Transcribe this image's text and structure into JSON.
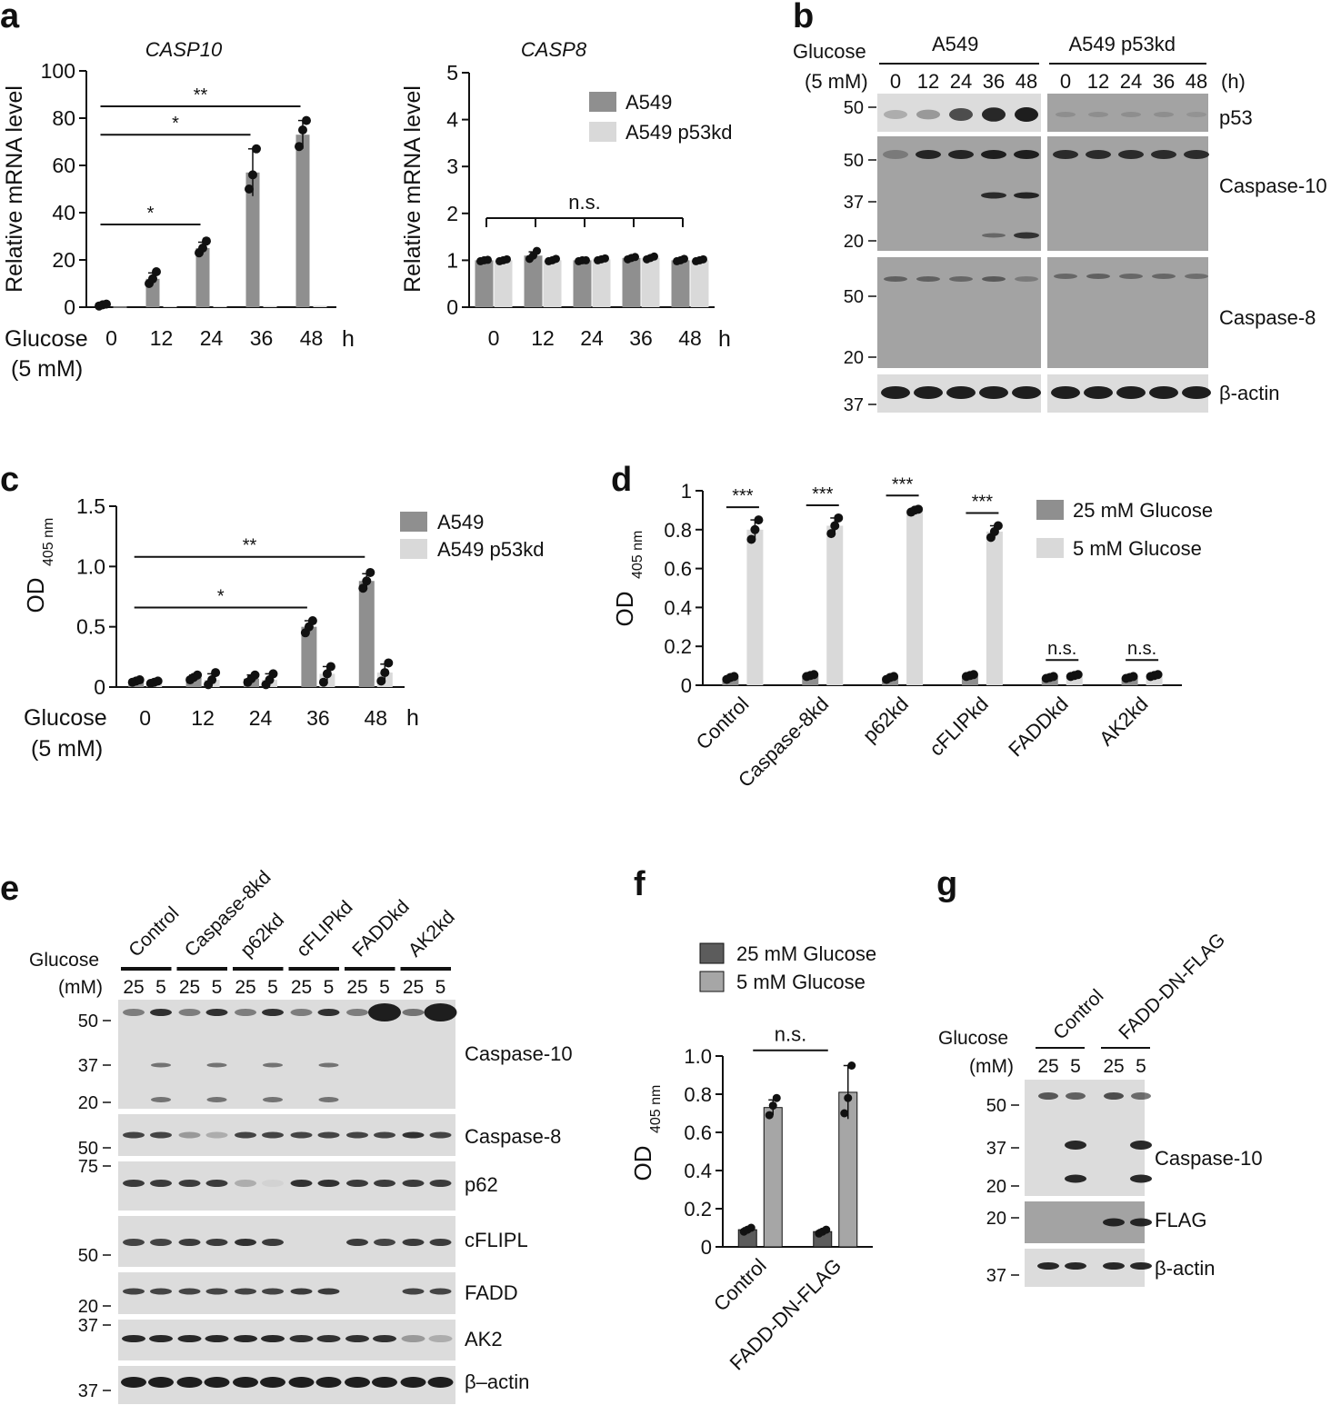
{
  "colors": {
    "dark_bar": "#8f8f8f",
    "light_bar": "#d9d9d9",
    "f_dark_bar": "#5c5c5c",
    "f_light_bar": "#a6a6a6",
    "dot": "#111111",
    "blot_bg": "#dcdcdc",
    "blot_dark_bg": "#a3a3a3",
    "band": "#1e1e1e"
  },
  "panels": {
    "a": "a",
    "b": "b",
    "c": "c",
    "d": "d",
    "e": "e",
    "f": "f",
    "g": "g"
  },
  "chart_data": [
    {
      "id": "a1",
      "type": "bar",
      "title": "CASP10",
      "ylabel": "Relative mRNA level",
      "ylim": [
        0,
        100
      ],
      "yticks": [
        "0",
        "20",
        "40",
        "60",
        "80",
        "100"
      ],
      "xlabel_main": "Glucose",
      "xlabel_sub": "(5 mM)",
      "unit": "h",
      "categories": [
        "0",
        "12",
        "24",
        "36",
        "48"
      ],
      "series": [
        {
          "values": [
            1,
            12,
            25,
            57,
            73
          ],
          "points": [
            [
              0.5,
              1,
              1.3
            ],
            [
              10,
              12,
              15
            ],
            [
              23,
              25,
              28
            ],
            [
              50,
              56,
              67
            ],
            [
              68,
              75,
              79
            ]
          ],
          "errors": [
            0.5,
            2.5,
            2.5,
            10,
            6
          ]
        },
        {
          "values": [
            0.2,
            0.4,
            0.4,
            0.5,
            0.6
          ],
          "points": [],
          "errors": []
        }
      ],
      "annotations": [
        {
          "text": "*",
          "from": 0,
          "to": 2,
          "y": 35
        },
        {
          "text": "*",
          "from": 0,
          "to": 3,
          "y": 73
        },
        {
          "text": "**",
          "from": 0,
          "to": 4,
          "y": 85
        }
      ]
    },
    {
      "id": "a2",
      "type": "bar",
      "title": "CASP8",
      "ylabel": "Relative mRNA level",
      "ylim": [
        0,
        5
      ],
      "yticks": [
        "0",
        "1",
        "2",
        "3",
        "4",
        "5"
      ],
      "unit": "h",
      "categories": [
        "0",
        "12",
        "24",
        "36",
        "48"
      ],
      "series": [
        {
          "name": "A549",
          "values": [
            1.0,
            1.1,
            1.0,
            1.05,
            1.0
          ],
          "points": [
            [
              0.98,
              1.0,
              1.01
            ],
            [
              1.03,
              1.1,
              1.2
            ],
            [
              0.98,
              1.0,
              1.0
            ],
            [
              1.02,
              1.05,
              1.07
            ],
            [
              0.98,
              1.0,
              1.03
            ]
          ],
          "errors": [
            0.02,
            0.08,
            0.02,
            0.03,
            0.03
          ]
        },
        {
          "name": "A549 p53kd",
          "values": [
            1.0,
            1.0,
            1.02,
            1.05,
            1.0
          ],
          "points": [
            [
              0.98,
              1.0,
              1.02
            ],
            [
              0.98,
              1.0,
              1.03
            ],
            [
              1.0,
              1.02,
              1.04
            ],
            [
              1.02,
              1.05,
              1.08
            ],
            [
              0.98,
              1.0,
              1.02
            ]
          ],
          "errors": [
            0.02,
            0.03,
            0.02,
            0.03,
            0.02
          ]
        }
      ],
      "bracket": {
        "text": "n.s.",
        "y": 1.9
      }
    },
    {
      "id": "c",
      "type": "bar",
      "ylabel_main": "OD",
      "ylabel_sub": "405 nm",
      "ylim": [
        0,
        1.5
      ],
      "yticks": [
        "0",
        "0.5",
        "1.0",
        "1.5"
      ],
      "xlabel_main": "Glucose",
      "xlabel_sub": "(5 mM)",
      "unit": "h",
      "categories": [
        "0",
        "12",
        "24",
        "36",
        "48"
      ],
      "series": [
        {
          "name": "A549",
          "values": [
            0.05,
            0.08,
            0.07,
            0.5,
            0.88
          ],
          "points": [
            [
              0.04,
              0.05,
              0.06
            ],
            [
              0.06,
              0.08,
              0.1
            ],
            [
              0.04,
              0.07,
              0.1
            ],
            [
              0.45,
              0.5,
              0.55
            ],
            [
              0.82,
              0.88,
              0.95
            ]
          ],
          "errors": [
            0.01,
            0.02,
            0.03,
            0.05,
            0.06
          ]
        },
        {
          "name": "A549 p53kd",
          "values": [
            0.04,
            0.06,
            0.06,
            0.11,
            0.12
          ],
          "points": [
            [
              0.03,
              0.04,
              0.05
            ],
            [
              0.02,
              0.06,
              0.12
            ],
            [
              0.02,
              0.06,
              0.11
            ],
            [
              0.04,
              0.11,
              0.17
            ],
            [
              0.05,
              0.12,
              0.2
            ]
          ],
          "errors": [
            0.01,
            0.05,
            0.05,
            0.06,
            0.07
          ]
        }
      ],
      "annotations": [
        {
          "text": "*",
          "from": 0,
          "to": 3,
          "y": 0.66
        },
        {
          "text": "**",
          "from": 0,
          "to": 4,
          "y": 1.08
        }
      ]
    },
    {
      "id": "d",
      "type": "bar",
      "ylabel_main": "OD",
      "ylabel_sub": "405 nm",
      "ylim": [
        0,
        1
      ],
      "yticks": [
        "0",
        "0.2",
        "0.4",
        "0.6",
        "0.8",
        "1"
      ],
      "categories": [
        "Control",
        "Caspase-8kd",
        "p62kd",
        "cFLIPkd",
        "FADDkd",
        "AK2kd"
      ],
      "series": [
        {
          "name": "25 mM Glucose",
          "values": [
            0.04,
            0.05,
            0.04,
            0.05,
            0.04,
            0.04
          ],
          "points": [
            [
              0.03,
              0.04,
              0.045
            ],
            [
              0.045,
              0.05,
              0.055
            ],
            [
              0.03,
              0.04,
              0.045
            ],
            [
              0.045,
              0.05,
              0.055
            ],
            [
              0.035,
              0.04,
              0.045
            ],
            [
              0.035,
              0.04,
              0.045
            ]
          ],
          "errors": [
            0.005,
            0.005,
            0.005,
            0.005,
            0.005,
            0.005
          ]
        },
        {
          "name": "5 mM Glucose",
          "values": [
            0.8,
            0.82,
            0.9,
            0.79,
            0.05,
            0.05
          ],
          "points": [
            [
              0.75,
              0.8,
              0.85
            ],
            [
              0.78,
              0.82,
              0.86
            ],
            [
              0.89,
              0.9,
              0.905
            ],
            [
              0.76,
              0.79,
              0.82
            ],
            [
              0.045,
              0.05,
              0.055
            ],
            [
              0.045,
              0.05,
              0.055
            ]
          ],
          "errors": [
            0.05,
            0.04,
            0.01,
            0.03,
            0.005,
            0.005
          ]
        }
      ],
      "pair_labels": [
        "***",
        "***",
        "***",
        "***",
        "n.s.",
        "n.s."
      ]
    },
    {
      "id": "f",
      "type": "bar",
      "ylabel_main": "OD",
      "ylabel_sub": "405 nm",
      "ylim": [
        0,
        1.0
      ],
      "yticks": [
        "0",
        "0.2",
        "0.4",
        "0.6",
        "0.8",
        "1.0"
      ],
      "categories": [
        "Control",
        "FADD-DN-FLAG"
      ],
      "series": [
        {
          "name": "25 mM Glucose",
          "values": [
            0.09,
            0.08
          ],
          "points": [
            [
              0.08,
              0.09,
              0.1
            ],
            [
              0.07,
              0.08,
              0.09
            ]
          ],
          "errors": [
            0.01,
            0.01
          ]
        },
        {
          "name": "5 mM Glucose",
          "values": [
            0.73,
            0.81
          ],
          "points": [
            [
              0.69,
              0.74,
              0.78
            ],
            [
              0.7,
              0.78,
              0.95
            ]
          ],
          "errors": [
            0.04,
            0.14
          ]
        }
      ],
      "bracket": {
        "text": "n.s.",
        "y": 1.03
      }
    }
  ],
  "blot_b": {
    "header1": "Glucose",
    "header2": "(5 mM)",
    "groups": [
      "A549",
      "A549 p53kd"
    ],
    "lanes": [
      "0",
      "12",
      "24",
      "36",
      "48"
    ],
    "unit": "(h)",
    "labels": {
      "p53": "p53",
      "casp10": "Caspase-10",
      "casp8": "Caspase-8",
      "actin": "β-actin"
    },
    "mw": {
      "m50a": "50",
      "m50b": "50",
      "m37a": "37",
      "m20a": "20",
      "m50c": "50",
      "m20b": "20",
      "m37b": "37"
    }
  },
  "blot_e": {
    "header1": "Glucose",
    "header2": "(mM)",
    "groups": [
      "Control",
      "Caspase-8kd",
      "p62kd",
      "cFLIPkd",
      "FADDkd",
      "AK2kd"
    ],
    "lanes": [
      "25",
      "5"
    ],
    "labels": {
      "casp10": "Caspase-10",
      "casp8": "Caspase-8",
      "p62": "p62",
      "cflip": "cFLIPL",
      "fadd": "FADD",
      "ak2": "AK2",
      "actin": "β–actin"
    },
    "mw": {
      "m50a": "50",
      "m37a": "37",
      "m20a": "20",
      "m50b": "50",
      "m75": "75",
      "m50c": "50",
      "m20b": "20",
      "m37b": "37",
      "m37c": "37"
    }
  },
  "blot_g": {
    "header1": "Glucose",
    "header2": "(mM)",
    "groups": [
      "Control",
      "FADD-DN-FLAG"
    ],
    "lanes": [
      "25",
      "5"
    ],
    "labels": {
      "casp10": "Caspase-10",
      "flag": "FLAG",
      "actin": "β-actin"
    },
    "mw": {
      "m50": "50",
      "m37a": "37",
      "m20a": "20",
      "m20b": "20",
      "m37b": "37"
    }
  }
}
